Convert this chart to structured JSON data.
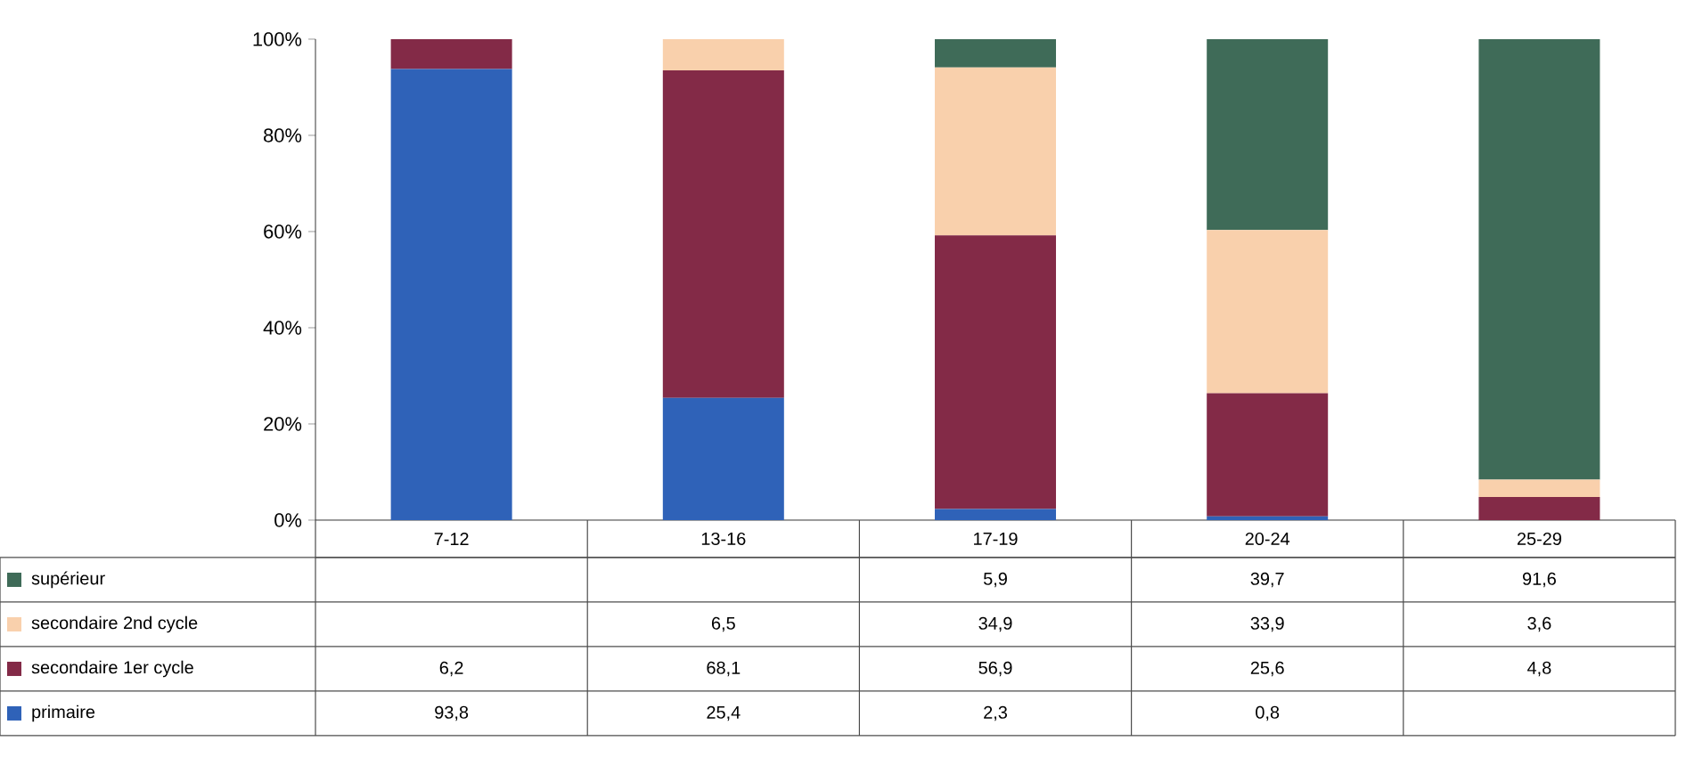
{
  "chart_data": {
    "type": "bar",
    "stacked": true,
    "categories": [
      "7-12",
      "13-16",
      "17-19",
      "20-24",
      "25-29"
    ],
    "series": [
      {
        "name": "primaire",
        "color": "#2f62b8",
        "values": [
          93.8,
          25.4,
          2.3,
          0.8,
          null
        ],
        "value_labels": [
          "93,8",
          "25,4",
          "2,3",
          "0,8",
          null
        ]
      },
      {
        "name": "secondaire 1er cycle",
        "color": "#832a47",
        "values": [
          6.2,
          68.1,
          56.9,
          25.6,
          4.8
        ],
        "value_labels": [
          "6,2",
          "68,1",
          "56,9",
          "25,6",
          "4,8"
        ]
      },
      {
        "name": "secondaire 2nd cycle",
        "color": "#f9d0ac",
        "values": [
          null,
          6.5,
          34.9,
          33.9,
          3.6
        ],
        "value_labels": [
          null,
          "6,5",
          "34,9",
          "33,9",
          "3,6"
        ]
      },
      {
        "name": "supérieur",
        "color": "#3f6b58",
        "values": [
          null,
          null,
          5.9,
          39.7,
          91.6
        ],
        "value_labels": [
          null,
          null,
          "5,9",
          "39,7",
          "91,6"
        ]
      }
    ],
    "ylim": [
      0,
      100
    ],
    "yticks": [
      {
        "value": 0,
        "label": "0%"
      },
      {
        "value": 20,
        "label": "20%"
      },
      {
        "value": 40,
        "label": "40%"
      },
      {
        "value": 60,
        "label": "60%"
      },
      {
        "value": 80,
        "label": "80%"
      },
      {
        "value": 100,
        "label": "100%"
      }
    ],
    "legend": "bottom"
  }
}
